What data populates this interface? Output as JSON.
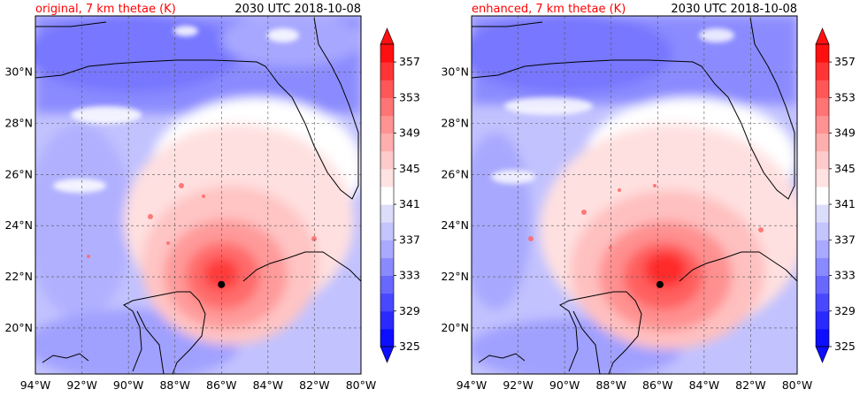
{
  "panels": [
    {
      "title_left": "original, 7 km thetae (K)",
      "title_right": "2030 UTC 2018-10-08",
      "storm_center": {
        "lon": -86.0,
        "lat": 21.7
      }
    },
    {
      "title_left": "enhanced, 7 km thetae (K)",
      "title_right": "2030 UTC 2018-10-08",
      "storm_center": {
        "lon": -85.9,
        "lat": 21.7
      }
    }
  ],
  "map": {
    "lon_range": [
      -94,
      -80
    ],
    "lat_range": [
      18.2,
      32.2
    ],
    "lon_ticks": [
      {
        "value": -94,
        "label": "94°W"
      },
      {
        "value": -92,
        "label": "92°W"
      },
      {
        "value": -90,
        "label": "90°W"
      },
      {
        "value": -88,
        "label": "88°W"
      },
      {
        "value": -86,
        "label": "86°W"
      },
      {
        "value": -84,
        "label": "84°W"
      },
      {
        "value": -82,
        "label": "82°W"
      },
      {
        "value": -80,
        "label": "80°W"
      }
    ],
    "lat_ticks": [
      {
        "value": 20,
        "label": "20°N"
      },
      {
        "value": 22,
        "label": "22°N"
      },
      {
        "value": 24,
        "label": "24°N"
      },
      {
        "value": 26,
        "label": "26°N"
      },
      {
        "value": 28,
        "label": "28°N"
      },
      {
        "value": 30,
        "label": "30°N"
      }
    ],
    "gridlines": true
  },
  "colorbar": {
    "range": [
      325,
      359
    ],
    "tick_values": [
      325,
      329,
      333,
      337,
      341,
      345,
      349,
      353,
      357
    ],
    "tick_labels": [
      "325",
      "329",
      "333",
      "337",
      "341",
      "345",
      "349",
      "353",
      "357"
    ],
    "colors": [
      "#0d0dff",
      "#2a2aff",
      "#4848ff",
      "#6868ff",
      "#8a8aff",
      "#a9a9ff",
      "#c4c4ff",
      "#dcdcfb",
      "#ffffff",
      "#ffe2e2",
      "#ffcaca",
      "#ffaeae",
      "#ff9292",
      "#ff7474",
      "#ff5656",
      "#ff3434",
      "#ff1010"
    ]
  },
  "colors": {
    "warm": "#ff3030",
    "cool": "#5a5aff",
    "coast": "#000000",
    "center_marker": "#000000"
  }
}
